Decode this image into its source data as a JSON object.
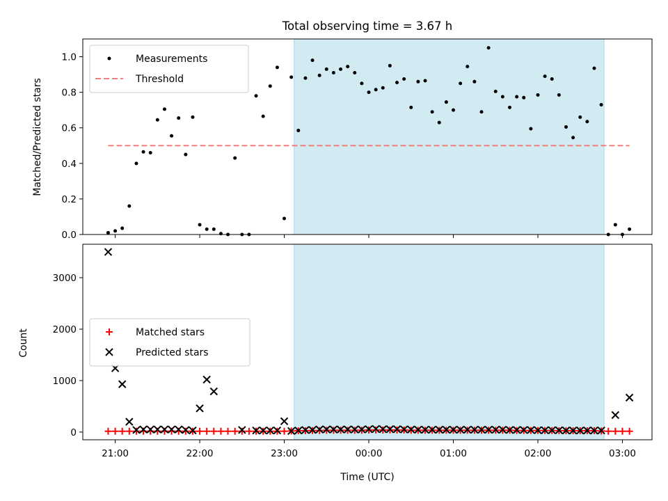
{
  "chart_data": {
    "type": "scatter",
    "title": "Total observing time = 3.67 h",
    "xlabel": "Time (UTC)",
    "xrange": [
      "20:37",
      "03:21"
    ],
    "xticks": [
      "21:00",
      "22:00",
      "23:00",
      "00:00",
      "01:00",
      "02:00",
      "03:00"
    ],
    "shaded_interval": [
      "23:07",
      "02:47"
    ],
    "shade_color": "#add8e6",
    "panels": [
      {
        "ylabel": "Matched/Predicted stars",
        "ylim": [
          0,
          1.1
        ],
        "yticks": [
          "0.0",
          "0.2",
          "0.4",
          "0.6",
          "0.8",
          "1.0"
        ],
        "legend_position": "upper left",
        "threshold": {
          "name": "Threshold",
          "value": 0.5,
          "from": "20:55",
          "to": "03:05",
          "color": "#f08080"
        },
        "series": [
          {
            "name": "Measurements",
            "color": "#000000",
            "x": [
              "20:55",
              "21:00",
              "21:05",
              "21:10",
              "21:15",
              "21:20",
              "21:25",
              "21:30",
              "21:35",
              "21:40",
              "21:45",
              "21:50",
              "21:55",
              "22:00",
              "22:05",
              "22:10",
              "22:15",
              "22:20",
              "22:25",
              "22:30",
              "22:35",
              "22:40",
              "22:45",
              "22:50",
              "22:55",
              "23:00",
              "23:05",
              "23:10",
              "23:15",
              "23:20",
              "23:25",
              "23:30",
              "23:35",
              "23:40",
              "23:45",
              "23:50",
              "23:55",
              "00:00",
              "00:05",
              "00:10",
              "00:15",
              "00:20",
              "00:25",
              "00:30",
              "00:35",
              "00:40",
              "00:45",
              "00:50",
              "00:55",
              "01:00",
              "01:05",
              "01:10",
              "01:15",
              "01:20",
              "01:25",
              "01:30",
              "01:35",
              "01:40",
              "01:45",
              "01:50",
              "01:55",
              "02:00",
              "02:05",
              "02:10",
              "02:15",
              "02:20",
              "02:25",
              "02:30",
              "02:35",
              "02:40",
              "02:45",
              "02:50",
              "02:55",
              "03:00",
              "03:05"
            ],
            "y": [
              0.01,
              0.02,
              0.035,
              0.16,
              0.4,
              0.465,
              0.46,
              0.645,
              0.705,
              0.555,
              0.655,
              0.45,
              0.66,
              0.055,
              0.03,
              0.03,
              0.005,
              0.0,
              0.43,
              0.0,
              0.0,
              0.78,
              0.665,
              0.835,
              0.94,
              0.09,
              0.885,
              0.585,
              0.88,
              0.98,
              0.895,
              0.93,
              0.91,
              0.93,
              0.945,
              0.91,
              0.85,
              0.8,
              0.815,
              0.825,
              0.95,
              0.855,
              0.875,
              0.715,
              0.86,
              0.865,
              0.69,
              0.63,
              0.745,
              0.7,
              0.85,
              0.945,
              0.86,
              0.69,
              1.05,
              0.805,
              0.775,
              0.715,
              0.775,
              0.77,
              0.595,
              0.785,
              0.89,
              0.875,
              0.785,
              0.605,
              0.545,
              0.66,
              0.635,
              0.935,
              0.73,
              0.0,
              0.055,
              0.0,
              0.03
            ]
          }
        ]
      },
      {
        "ylabel": "Count",
        "ylim": [
          -150,
          3650
        ],
        "yticks": [
          "0",
          "1000",
          "2000",
          "3000"
        ],
        "legend_position": "center left",
        "series": [
          {
            "name": "Matched stars",
            "color": "#ff0000",
            "marker": "+",
            "x": [
              "20:55",
              "21:00",
              "21:05",
              "21:10",
              "21:15",
              "21:20",
              "21:25",
              "21:30",
              "21:35",
              "21:40",
              "21:45",
              "21:50",
              "21:55",
              "22:00",
              "22:05",
              "22:10",
              "22:15",
              "22:20",
              "22:25",
              "22:30",
              "22:35",
              "22:40",
              "22:45",
              "22:50",
              "22:55",
              "23:00",
              "23:05",
              "23:10",
              "23:15",
              "23:20",
              "23:25",
              "23:30",
              "23:35",
              "23:40",
              "23:45",
              "23:50",
              "23:55",
              "00:00",
              "00:05",
              "00:10",
              "00:15",
              "00:20",
              "00:25",
              "00:30",
              "00:35",
              "00:40",
              "00:45",
              "00:50",
              "00:55",
              "01:00",
              "01:05",
              "01:10",
              "01:15",
              "01:20",
              "01:25",
              "01:30",
              "01:35",
              "01:40",
              "01:45",
              "01:50",
              "01:55",
              "02:00",
              "02:05",
              "02:10",
              "02:15",
              "02:20",
              "02:25",
              "02:30",
              "02:35",
              "02:40",
              "02:45",
              "02:50",
              "02:55",
              "03:00",
              "03:05"
            ],
            "y": [
              15,
              15,
              15,
              15,
              15,
              15,
              15,
              15,
              15,
              15,
              15,
              15,
              15,
              15,
              15,
              15,
              15,
              15,
              15,
              15,
              15,
              15,
              15,
              15,
              15,
              15,
              20,
              25,
              25,
              30,
              30,
              35,
              35,
              35,
              35,
              35,
              35,
              40,
              40,
              40,
              40,
              40,
              40,
              35,
              35,
              35,
              35,
              35,
              35,
              35,
              35,
              35,
              35,
              35,
              35,
              35,
              35,
              35,
              30,
              30,
              30,
              30,
              30,
              30,
              25,
              25,
              25,
              25,
              25,
              25,
              20,
              15,
              15,
              15,
              15
            ]
          },
          {
            "name": "Predicted stars",
            "color": "#000000",
            "marker": "x",
            "x": [
              "20:55",
              "21:00",
              "21:05",
              "21:10",
              "21:15",
              "21:20",
              "21:25",
              "21:30",
              "21:35",
              "21:40",
              "21:45",
              "21:50",
              "21:55",
              "22:00",
              "22:05",
              "22:10",
              "22:30",
              "22:40",
              "22:45",
              "22:50",
              "22:55",
              "23:00",
              "23:05",
              "23:10",
              "23:15",
              "23:20",
              "23:25",
              "23:30",
              "23:35",
              "23:40",
              "23:45",
              "23:50",
              "23:55",
              "00:00",
              "00:05",
              "00:10",
              "00:15",
              "00:20",
              "00:25",
              "00:30",
              "00:35",
              "00:40",
              "00:45",
              "00:50",
              "00:55",
              "01:00",
              "01:05",
              "01:10",
              "01:15",
              "01:20",
              "01:25",
              "01:30",
              "01:35",
              "01:40",
              "01:45",
              "01:50",
              "01:55",
              "02:00",
              "02:05",
              "02:10",
              "02:15",
              "02:20",
              "02:25",
              "02:30",
              "02:35",
              "02:40",
              "02:45",
              "02:55",
              "03:05"
            ],
            "y": [
              3500,
              1240,
              930,
              200,
              40,
              50,
              50,
              50,
              50,
              50,
              50,
              40,
              30,
              460,
              1020,
              790,
              40,
              30,
              30,
              30,
              30,
              210,
              20,
              30,
              40,
              40,
              50,
              50,
              50,
              50,
              50,
              50,
              50,
              55,
              60,
              55,
              55,
              55,
              50,
              50,
              45,
              45,
              45,
              45,
              45,
              45,
              45,
              45,
              45,
              45,
              45,
              45,
              45,
              40,
              40,
              40,
              40,
              35,
              35,
              35,
              35,
              30,
              30,
              30,
              30,
              30,
              30,
              330,
              670
            ]
          }
        ]
      }
    ]
  }
}
